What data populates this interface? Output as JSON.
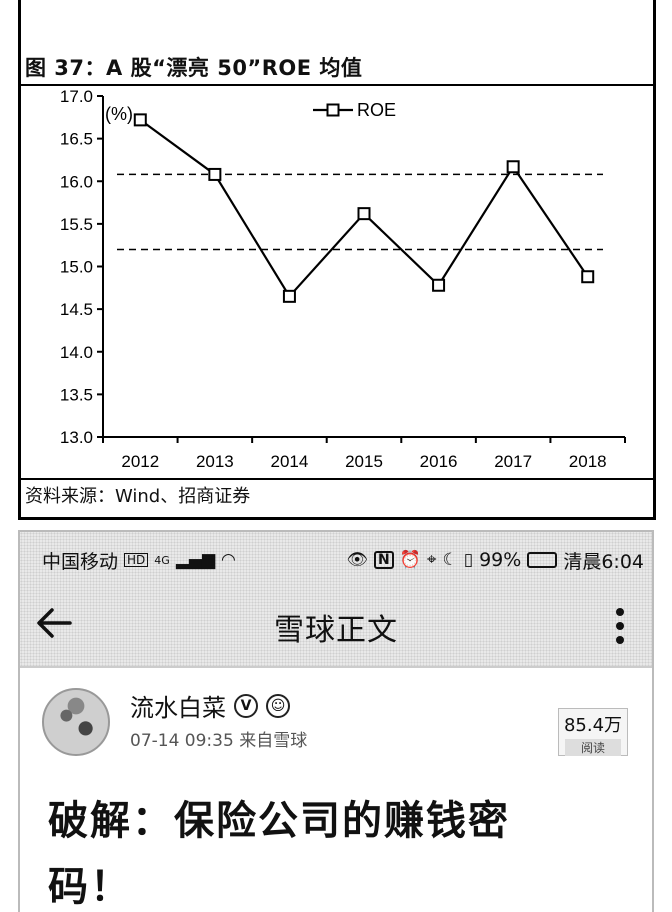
{
  "chart": {
    "title": "图 37：A 股“漂亮 50”ROE 均值",
    "source": "资料来源：Wind、招商证券",
    "unit_label": "(%)"
  },
  "chart_data": {
    "type": "line",
    "categories": [
      "2012",
      "2013",
      "2014",
      "2015",
      "2016",
      "2017",
      "2018"
    ],
    "series": [
      {
        "name": "ROE",
        "values": [
          16.72,
          16.08,
          14.65,
          15.62,
          14.78,
          16.17,
          14.88
        ]
      }
    ],
    "reference_lines": [
      16.08,
      15.2
    ],
    "ylim": [
      13.0,
      17.0
    ],
    "yticks": [
      "13.0",
      "13.5",
      "14.0",
      "14.5",
      "15.0",
      "15.5",
      "16.0",
      "16.5",
      "17.0"
    ],
    "ylabel": "(%)",
    "legend_position": "top-center",
    "grid": false,
    "line_color": "#000000"
  },
  "status_bar": {
    "carrier": "中国移动",
    "hd": "HD",
    "network": "4G",
    "battery_pct": "99%",
    "time": "清晨6:04"
  },
  "nav": {
    "title": "雪球正文"
  },
  "post": {
    "author": "流水白菜",
    "meta": "07-14 09:35  来自雪球",
    "reads_count": "85.4万",
    "reads_label": "阅读",
    "title": "破解：保险公司的赚钱密码！"
  }
}
